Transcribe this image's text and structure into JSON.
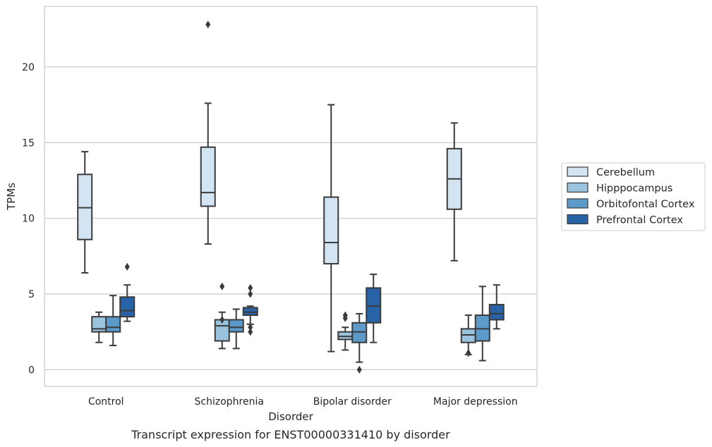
{
  "caption": "Transcript expression for ENST00000331410 by disorder",
  "chart_data": {
    "type": "box",
    "xlabel": "Disorder",
    "ylabel": "TPMs",
    "ylim": [
      -1.1,
      24
    ],
    "yticks": [
      0,
      5,
      10,
      15,
      20
    ],
    "grid": true,
    "legend_position": "right",
    "categories": [
      "Control",
      "Schizophrenia",
      "Bipolar disorder",
      "Major depression"
    ],
    "series": [
      {
        "name": "Cerebellum",
        "color": "#d3e4f3",
        "boxes": [
          {
            "min": 6.4,
            "q1": 8.6,
            "median": 10.7,
            "q3": 12.9,
            "max": 14.4,
            "outliers": []
          },
          {
            "min": 8.3,
            "q1": 10.8,
            "median": 11.7,
            "q3": 14.7,
            "max": 17.6,
            "outliers": [
              22.8
            ]
          },
          {
            "min": 1.2,
            "q1": 7.0,
            "median": 8.4,
            "q3": 11.4,
            "max": 17.5,
            "outliers": []
          },
          {
            "min": 7.2,
            "q1": 10.6,
            "median": 12.6,
            "q3": 14.6,
            "max": 16.3,
            "outliers": []
          }
        ]
      },
      {
        "name": "Hipppocampus",
        "color": "#99c3de",
        "boxes": [
          {
            "min": 1.8,
            "q1": 2.5,
            "median": 2.7,
            "q3": 3.5,
            "max": 3.8,
            "outliers": []
          },
          {
            "min": 1.4,
            "q1": 1.9,
            "median": 2.9,
            "q3": 3.3,
            "max": 3.8,
            "outliers": [
              3.3,
              5.5
            ]
          },
          {
            "min": 1.3,
            "q1": 2.0,
            "median": 2.2,
            "q3": 2.5,
            "max": 2.8,
            "outliers": [
              3.4,
              3.6
            ]
          },
          {
            "min": 1.0,
            "q1": 1.8,
            "median": 2.3,
            "q3": 2.7,
            "max": 3.6,
            "outliers": [
              1.1
            ]
          }
        ]
      },
      {
        "name": "Orbitofontal Cortex",
        "color": "#5b9ac9",
        "boxes": [
          {
            "min": 1.6,
            "q1": 2.5,
            "median": 2.8,
            "q3": 3.5,
            "max": 4.9,
            "outliers": []
          },
          {
            "min": 1.4,
            "q1": 2.5,
            "median": 2.8,
            "q3": 3.3,
            "max": 4.0,
            "outliers": []
          },
          {
            "min": 0.5,
            "q1": 1.8,
            "median": 2.5,
            "q3": 3.1,
            "max": 3.7,
            "outliers": [
              0.0
            ]
          },
          {
            "min": 0.6,
            "q1": 1.9,
            "median": 2.7,
            "q3": 3.6,
            "max": 5.5,
            "outliers": []
          }
        ]
      },
      {
        "name": "Prefrontal Cortex",
        "color": "#2863a8",
        "boxes": [
          {
            "min": 3.2,
            "q1": 3.5,
            "median": 3.9,
            "q3": 4.8,
            "max": 5.6,
            "outliers": [
              6.8
            ]
          },
          {
            "min": 3.0,
            "q1": 3.6,
            "median": 3.8,
            "q3": 4.1,
            "max": 4.2,
            "outliers": [
              2.5,
              2.8,
              5.0,
              5.4
            ]
          },
          {
            "min": 1.8,
            "q1": 3.1,
            "median": 4.2,
            "q3": 5.4,
            "max": 6.3,
            "outliers": []
          },
          {
            "min": 2.7,
            "q1": 3.3,
            "median": 3.7,
            "q3": 4.3,
            "max": 5.6,
            "outliers": []
          }
        ]
      }
    ]
  }
}
